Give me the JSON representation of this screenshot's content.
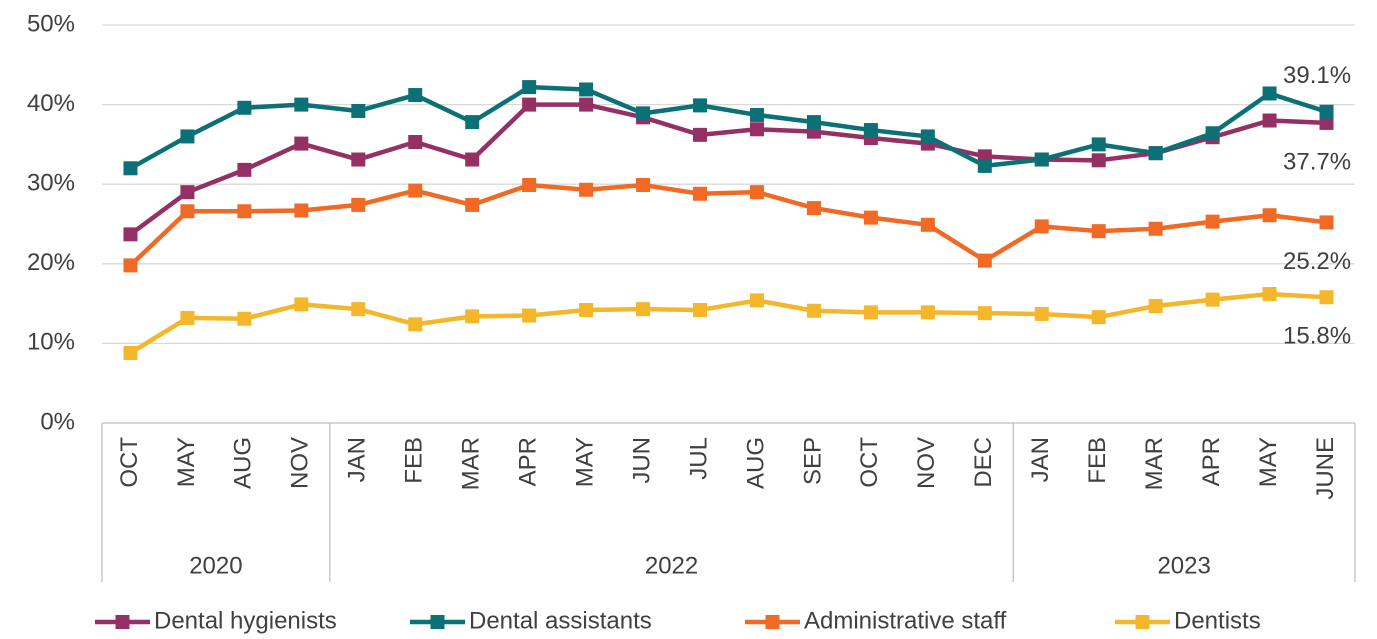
{
  "chart_data": {
    "type": "line",
    "groups": [
      {
        "label": "2020",
        "categories": [
          "OCT",
          "MAY",
          "AUG",
          "NOV"
        ]
      },
      {
        "label": "2022",
        "categories": [
          "JAN",
          "FEB",
          "MAR",
          "APR",
          "MAY",
          "JUN",
          "JUL",
          "AUG",
          "SEP",
          "OCT",
          "NOV",
          "DEC"
        ]
      },
      {
        "label": "2023",
        "categories": [
          "JAN",
          "FEB",
          "MAR",
          "APR",
          "MAY",
          "JUNE"
        ]
      }
    ],
    "series": [
      {
        "name": "Dental hygienists",
        "color": "#953064",
        "values": [
          23.7,
          29.0,
          31.8,
          35.1,
          33.1,
          35.3,
          33.1,
          40.0,
          40.0,
          38.4,
          36.2,
          36.9,
          36.6,
          35.8,
          35.1,
          33.5,
          33.1,
          33.0,
          33.9,
          35.9,
          38.0,
          37.7
        ],
        "end_label": "37.7%"
      },
      {
        "name": "Dental assistants",
        "color": "#0b7177",
        "values": [
          32.0,
          36.0,
          39.6,
          40.0,
          39.2,
          41.2,
          37.8,
          42.2,
          41.9,
          38.9,
          39.9,
          38.7,
          37.8,
          36.8,
          36.0,
          32.3,
          33.1,
          35.0,
          33.9,
          36.4,
          41.4,
          39.1
        ],
        "end_label": "39.1%"
      },
      {
        "name": "Administrative staff",
        "color": "#f06a25",
        "values": [
          19.8,
          26.6,
          26.6,
          26.7,
          27.4,
          29.2,
          27.4,
          29.9,
          29.3,
          29.9,
          28.8,
          29.0,
          27.0,
          25.8,
          24.9,
          20.4,
          24.7,
          24.1,
          24.4,
          25.3,
          26.1,
          25.2
        ],
        "end_label": "25.2%"
      },
      {
        "name": "Dentists",
        "color": "#f4b62a",
        "values": [
          8.8,
          13.2,
          13.1,
          14.9,
          14.3,
          12.4,
          13.4,
          13.5,
          14.2,
          14.3,
          14.2,
          15.4,
          14.1,
          13.9,
          13.9,
          13.8,
          13.7,
          13.3,
          14.7,
          15.5,
          16.2,
          15.8
        ],
        "end_label": "15.8%"
      }
    ],
    "ylim": [
      0,
      50
    ],
    "yticks": [
      {
        "value": 0,
        "label": "0%"
      },
      {
        "value": 10,
        "label": "10%"
      },
      {
        "value": 20,
        "label": "20%"
      },
      {
        "value": 30,
        "label": "30%"
      },
      {
        "value": 40,
        "label": "40%"
      },
      {
        "value": 50,
        "label": "50%"
      }
    ],
    "grid": true,
    "legend": "bottom"
  }
}
